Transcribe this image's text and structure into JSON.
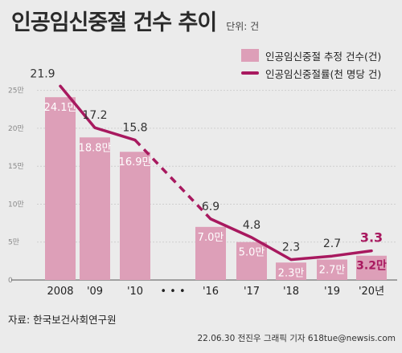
{
  "header": {
    "title": "인공임신중절 건수 추이",
    "unit": "단위: 건"
  },
  "legend": {
    "bar_label": "인공임신중절 추정 건수(건)",
    "line_label": "인공임신중절률(천 명당 건)"
  },
  "colors": {
    "bar": "#dd9fb8",
    "line": "#a8195f",
    "emphasis": "#a8195f",
    "bar_label": "#ffffff"
  },
  "chart_data": {
    "type": "bar",
    "categories": [
      "2008",
      "'09",
      "'10",
      "'16",
      "'17",
      "'18",
      "'19",
      "'20년"
    ],
    "gap_marker": "• • •",
    "series": [
      {
        "name": "인공임신중절 추정 건수(건)",
        "type": "bar",
        "axis": "left",
        "values": [
          24.1,
          18.8,
          16.9,
          7.0,
          5.0,
          2.3,
          2.7,
          3.2
        ],
        "value_labels": [
          "24.1만",
          "18.8만",
          "16.9만",
          "7.0만",
          "5.0만",
          "2.3만",
          "2.7만",
          "3.2만"
        ]
      },
      {
        "name": "인공임신중절률(천 명당 건)",
        "type": "line",
        "axis": "right",
        "values": [
          21.9,
          17.2,
          15.8,
          6.9,
          4.8,
          2.3,
          2.7,
          3.3
        ],
        "value_labels": [
          "21.9",
          "17.2",
          "15.8",
          "6.9",
          "4.8",
          "2.3",
          "2.7",
          "3.3"
        ],
        "dashed_between": [
          "'10",
          "'16"
        ]
      }
    ],
    "yticks": [
      "0",
      "5만",
      "10만",
      "15만",
      "20만",
      "25만"
    ],
    "ytick_values": [
      0,
      5,
      10,
      15,
      20,
      25
    ],
    "ylim": [
      0,
      29.3
    ],
    "line_ylim": [
      0,
      25.1
    ],
    "grid": true,
    "legend_position": "top-right"
  },
  "footer": {
    "source": "자료: 한국보건사회연구원",
    "credit": "22.06.30 전진우 그래픽 기자 618tue@newsis.com"
  }
}
